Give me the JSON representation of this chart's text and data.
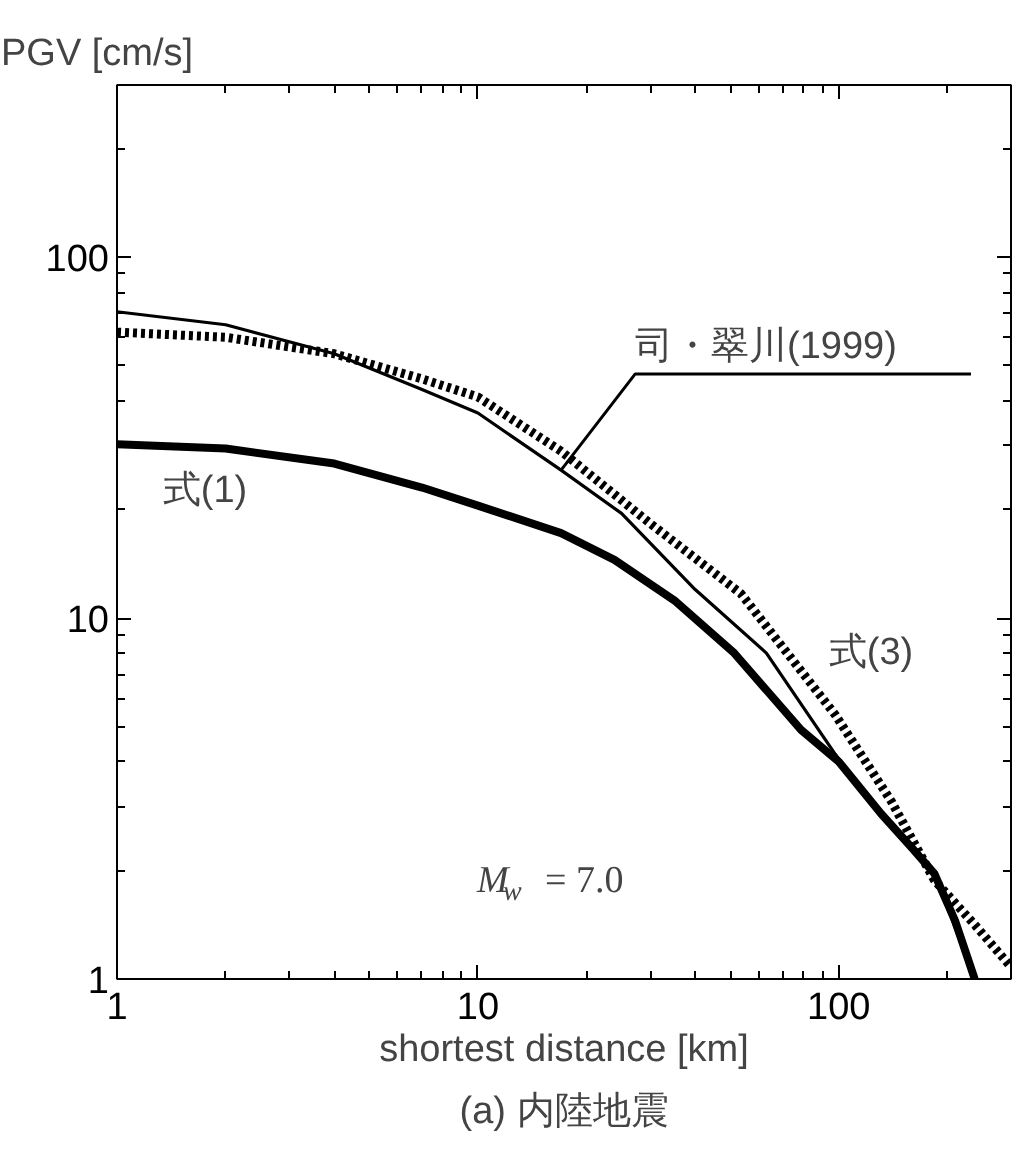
{
  "chart_data": {
    "type": "line",
    "title": "(a) 内陸地震",
    "xlabel": "shortest distance [km]",
    "ylabel": "PGV [cm/s]",
    "log": "xy",
    "xlim": [
      1,
      300
    ],
    "ylim": [
      1,
      300
    ],
    "xticks": [
      1,
      10,
      100
    ],
    "yticks": [
      1,
      10,
      100
    ],
    "grid": false,
    "series": [
      {
        "color": "#000000",
        "line_style": "solid",
        "x": [
          1,
          2,
          4,
          7,
          10,
          17,
          23.9,
          35,
          51.3,
          78.6,
          100,
          131,
          160,
          184,
          210,
          238
        ],
        "values": [
          30.3,
          29.5,
          26.8,
          23,
          20.5,
          17.2,
          14.5,
          11.2,
          8.0,
          4.9,
          4.0,
          2.87,
          2.3,
          1.96,
          1.45,
          1.0
        ]
      },
      {
        "color": "#000000",
        "line_style": "solid",
        "x": [
          1,
          2,
          4,
          7,
          10,
          17,
          25,
          40,
          63,
          97.7,
          131,
          184,
          238
        ],
        "values": [
          70.6,
          65,
          54,
          43,
          37,
          25.7,
          19.5,
          12,
          8.0,
          4.2,
          2.87,
          1.96,
          1.0
        ]
      },
      {
        "color": "#000000",
        "line_style": "dotted",
        "x": [
          1,
          2,
          4,
          7,
          10,
          17,
          30,
          53.5,
          97.7,
          140,
          184,
          240,
          300
        ],
        "values": [
          62,
          60,
          54,
          46,
          41,
          29,
          18.3,
          11.7,
          5.4,
          3.1,
          1.88,
          1.4,
          1.08
        ]
      }
    ],
    "annotations": [
      "式(1)",
      {
        "text": "司・翠川(1999)",
        "x": 17,
        "y": 25.7
      },
      "式(3)",
      "M$_{w}$ = 7.0"
    ]
  }
}
